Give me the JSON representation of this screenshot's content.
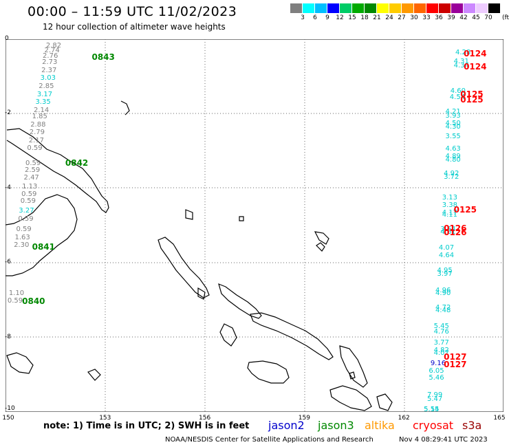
{
  "title": "00:00 – 11:59 UTC 11/02/2023",
  "subtitle": "12 hour collection of altimeter wave heights",
  "colorbar": {
    "colors": [
      "#7f7f7f",
      "#00ffff",
      "#00bfff",
      "#0000ff",
      "#00cc66",
      "#00aa00",
      "#008800",
      "#ffff00",
      "#ffcc00",
      "#ff9900",
      "#ff6600",
      "#ff0000",
      "#cc0000",
      "#990099",
      "#cc88ff",
      "#eeccff",
      "#000000"
    ],
    "labels": [
      "3",
      "6",
      "9",
      "12",
      "15",
      "18",
      "21",
      "24",
      "27",
      "30",
      "33",
      "36",
      "39",
      "42",
      "45",
      "70"
    ],
    "units": "(ft)"
  },
  "x_ticks": [
    "150",
    "153",
    "156",
    "159",
    "162",
    "165"
  ],
  "y_ticks": [
    "0",
    "-2",
    "-4",
    "-6",
    "-8",
    "-10"
  ],
  "note": "note:  1) Time is in UTC;  2) SWH is in feet",
  "legend": [
    {
      "name": "jason2",
      "color": "#0000cc"
    },
    {
      "name": "jason3",
      "color": "#008800"
    },
    {
      "name": "altika",
      "color": "#ff9900"
    },
    {
      "name": "cryosat",
      "color": "#ff0000"
    },
    {
      "name": "s3a",
      "color": "#990000"
    }
  ],
  "credit": "NOAA/NESDIS Center for Satellite Applications and Research",
  "timestamp": "Nov  4 08:29:41 UTC 2023",
  "map": {
    "lon_range": [
      150,
      165
    ],
    "lat_range": [
      -10,
      0
    ],
    "grid": "dotted"
  },
  "tracks": [
    {
      "satellite": "jason3",
      "times": [
        {
          "label": "0843",
          "lon": 152.6,
          "lat": -0.35
        },
        {
          "label": "0842",
          "lon": 151.8,
          "lat": -3.2
        },
        {
          "label": "0841",
          "lon": 150.8,
          "lat": -5.45
        },
        {
          "label": "0840",
          "lon": 150.5,
          "lat": -6.9
        }
      ],
      "points": [
        {
          "v": "2.82",
          "lon": 151.22,
          "lat": -0.08,
          "c": "#808080"
        },
        {
          "v": "2.74",
          "lon": 151.17,
          "lat": -0.2,
          "c": "#808080"
        },
        {
          "v": "2.76",
          "lon": 151.12,
          "lat": -0.35,
          "c": "#808080"
        },
        {
          "v": "2.73",
          "lon": 151.1,
          "lat": -0.52,
          "c": "#808080"
        },
        {
          "v": "2.37",
          "lon": 151.08,
          "lat": -0.74,
          "c": "#808080"
        },
        {
          "v": "3.03",
          "lon": 151.05,
          "lat": -0.95,
          "c": "#00cccc"
        },
        {
          "v": "2.85",
          "lon": 151.0,
          "lat": -1.17,
          "c": "#808080"
        },
        {
          "v": "3.17",
          "lon": 150.95,
          "lat": -1.38,
          "c": "#00cccc"
        },
        {
          "v": "3.35",
          "lon": 150.9,
          "lat": -1.58,
          "c": "#00cccc"
        },
        {
          "v": "2.14",
          "lon": 150.85,
          "lat": -1.8,
          "c": "#808080"
        },
        {
          "v": "1.85",
          "lon": 150.8,
          "lat": -1.98,
          "c": "#808080"
        },
        {
          "v": "2.88",
          "lon": 150.75,
          "lat": -2.2,
          "c": "#808080"
        },
        {
          "v": "2.79",
          "lon": 150.72,
          "lat": -2.4,
          "c": "#808080"
        },
        {
          "v": "2.17",
          "lon": 150.7,
          "lat": -2.62,
          "c": "#808080"
        },
        {
          "v": "0.59",
          "lon": 150.65,
          "lat": -2.82,
          "c": "#808080"
        },
        {
          "v": "0.59",
          "lon": 150.6,
          "lat": -3.22,
          "c": "#808080"
        },
        {
          "v": "2.59",
          "lon": 150.58,
          "lat": -3.42,
          "c": "#808080"
        },
        {
          "v": "2.47",
          "lon": 150.55,
          "lat": -3.62,
          "c": "#808080"
        },
        {
          "v": "1.13",
          "lon": 150.5,
          "lat": -3.85,
          "c": "#808080"
        },
        {
          "v": "0.59",
          "lon": 150.48,
          "lat": -4.05,
          "c": "#808080"
        },
        {
          "v": "0.59",
          "lon": 150.45,
          "lat": -4.25,
          "c": "#808080"
        },
        {
          "v": "3.27",
          "lon": 150.4,
          "lat": -4.5,
          "c": "#00cccc"
        },
        {
          "v": "0.59",
          "lon": 150.38,
          "lat": -4.72,
          "c": "#808080"
        },
        {
          "v": "0.59",
          "lon": 150.32,
          "lat": -5.0,
          "c": "#808080"
        },
        {
          "v": "1.63",
          "lon": 150.28,
          "lat": -5.22,
          "c": "#808080"
        },
        {
          "v": "2.30",
          "lon": 150.25,
          "lat": -5.42,
          "c": "#808080"
        },
        {
          "v": "1.10",
          "lon": 150.1,
          "lat": -6.72,
          "c": "#808080"
        },
        {
          "v": "0.59",
          "lon": 150.06,
          "lat": -6.92,
          "c": "#808080"
        }
      ]
    },
    {
      "satellite": "cryosat",
      "times": [
        {
          "label": "0124",
          "lon": 163.8,
          "lat": -0.25
        },
        {
          "label": "0124",
          "lon": 163.8,
          "lat": -0.6
        },
        {
          "label": "0125",
          "lon": 163.7,
          "lat": -1.35
        },
        {
          "label": "0125",
          "lon": 163.7,
          "lat": -1.5
        },
        {
          "label": "0125",
          "lon": 163.5,
          "lat": -4.45
        },
        {
          "label": "0126",
          "lon": 163.2,
          "lat": -4.95
        },
        {
          "label": "0126",
          "lon": 163.2,
          "lat": -5.05
        },
        {
          "label": "0127",
          "lon": 163.2,
          "lat": -8.4
        },
        {
          "label": "0127",
          "lon": 163.2,
          "lat": -8.6
        }
      ],
      "points": [
        {
          "v": "4.28",
          "lon": 163.55,
          "lat": -0.25,
          "c": "#00cccc"
        },
        {
          "v": "4.31",
          "lon": 163.5,
          "lat": -0.5,
          "c": "#00cccc"
        },
        {
          "v": "4.34",
          "lon": 163.5,
          "lat": -0.6,
          "c": "#00cccc"
        },
        {
          "v": "4.60",
          "lon": 163.4,
          "lat": -1.3,
          "c": "#00cccc"
        },
        {
          "v": "4.54",
          "lon": 163.38,
          "lat": -1.45,
          "c": "#00cccc"
        },
        {
          "v": "4.21",
          "lon": 163.25,
          "lat": -1.85,
          "c": "#00cccc"
        },
        {
          "v": "3.93",
          "lon": 163.25,
          "lat": -1.95,
          "c": "#00cccc"
        },
        {
          "v": "4.50",
          "lon": 163.25,
          "lat": -2.15,
          "c": "#00cccc"
        },
        {
          "v": "4.30",
          "lon": 163.25,
          "lat": -2.25,
          "c": "#00cccc"
        },
        {
          "v": "3.55",
          "lon": 163.25,
          "lat": -2.5,
          "c": "#00cccc"
        },
        {
          "v": "4.63",
          "lon": 163.25,
          "lat": -2.85,
          "c": "#00cccc"
        },
        {
          "v": "4.89",
          "lon": 163.25,
          "lat": -3.05,
          "c": "#00cccc"
        },
        {
          "v": "4.80",
          "lon": 163.25,
          "lat": -3.13,
          "c": "#00cccc"
        },
        {
          "v": "4.92",
          "lon": 163.2,
          "lat": -3.5,
          "c": "#00cccc"
        },
        {
          "v": "3.72",
          "lon": 163.2,
          "lat": -3.6,
          "c": "#00cccc"
        },
        {
          "v": "3.13",
          "lon": 163.15,
          "lat": -4.15,
          "c": "#00cccc"
        },
        {
          "v": "3.38",
          "lon": 163.15,
          "lat": -4.35,
          "c": "#00cccc"
        },
        {
          "v": "4.17",
          "lon": 163.15,
          "lat": -4.55,
          "c": "#00cccc"
        },
        {
          "v": "4.11",
          "lon": 163.15,
          "lat": -4.62,
          "c": "#00cccc"
        },
        {
          "v": "3.64",
          "lon": 163.1,
          "lat": -5.0,
          "c": "#00cccc"
        },
        {
          "v": "4.61",
          "lon": 163.1,
          "lat": -5.08,
          "c": "#00cccc"
        },
        {
          "v": "4.07",
          "lon": 163.05,
          "lat": -5.5,
          "c": "#00cccc"
        },
        {
          "v": "4.64",
          "lon": 163.05,
          "lat": -5.7,
          "c": "#00cccc"
        },
        {
          "v": "4.95",
          "lon": 163.0,
          "lat": -6.1,
          "c": "#00cccc"
        },
        {
          "v": "3.97",
          "lon": 163.0,
          "lat": -6.2,
          "c": "#00cccc"
        },
        {
          "v": "4.96",
          "lon": 162.95,
          "lat": -6.65,
          "c": "#00cccc"
        },
        {
          "v": "4.90",
          "lon": 162.95,
          "lat": -6.72,
          "c": "#00cccc"
        },
        {
          "v": "4.72",
          "lon": 162.95,
          "lat": -7.1,
          "c": "#00cccc"
        },
        {
          "v": "4.48",
          "lon": 162.95,
          "lat": -7.18,
          "c": "#00cccc"
        },
        {
          "v": "5.45",
          "lon": 162.9,
          "lat": -7.6,
          "c": "#00cccc"
        },
        {
          "v": "4.76",
          "lon": 162.9,
          "lat": -7.75,
          "c": "#00cccc"
        },
        {
          "v": "3.77",
          "lon": 162.9,
          "lat": -8.05,
          "c": "#00cccc"
        },
        {
          "v": "4.82",
          "lon": 162.9,
          "lat": -8.25,
          "c": "#00cccc"
        },
        {
          "v": "4.07",
          "lon": 162.9,
          "lat": -8.32,
          "c": "#00cccc"
        },
        {
          "v": "9.16",
          "lon": 162.8,
          "lat": -8.6,
          "c": "#0000cc"
        },
        {
          "v": "6.05",
          "lon": 162.75,
          "lat": -8.8,
          "c": "#00cccc"
        },
        {
          "v": "5.46",
          "lon": 162.75,
          "lat": -8.98,
          "c": "#00cccc"
        },
        {
          "v": "7.99",
          "lon": 162.7,
          "lat": -9.45,
          "c": "#00cccc"
        },
        {
          "v": "5.47",
          "lon": 162.7,
          "lat": -9.55,
          "c": "#00cccc"
        },
        {
          "v": "5.14",
          "lon": 162.6,
          "lat": -10.0,
          "c": "#00cccc"
        },
        {
          "v": "5.55",
          "lon": 162.6,
          "lat": -10.08,
          "c": "#00cccc"
        }
      ]
    }
  ]
}
